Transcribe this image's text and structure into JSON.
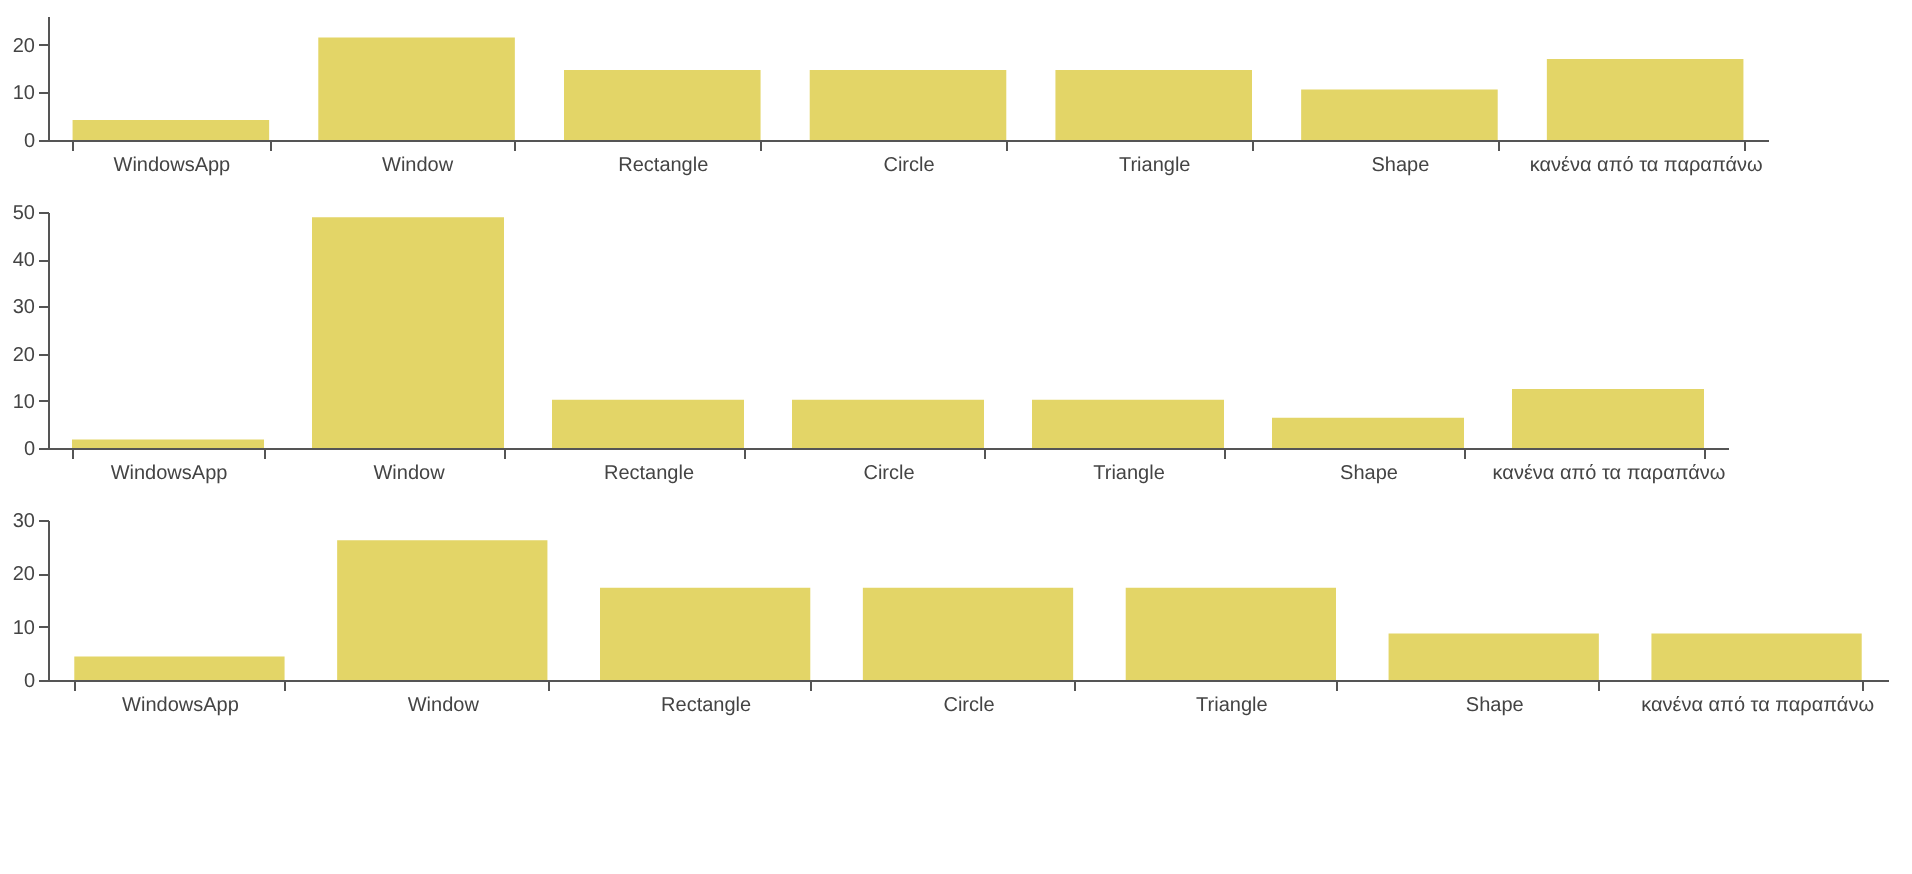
{
  "chart_data": [
    {
      "type": "bar",
      "categories": [
        "WindowsApp",
        "Window",
        "Rectangle",
        "Circle",
        "Triangle",
        "Shape",
        "κανένα από τα παραπάνω"
      ],
      "values": [
        4.2,
        21.5,
        14.7,
        14.7,
        14.7,
        10.6,
        17
      ],
      "color": "#e3d567",
      "ylim": [
        0,
        26
      ],
      "yticks": [
        0,
        10,
        20
      ],
      "grid": false
    },
    {
      "type": "bar",
      "categories": [
        "WindowsApp",
        "Window",
        "Rectangle",
        "Circle",
        "Triangle",
        "Shape",
        "κανένα από τα παραπάνω"
      ],
      "values": [
        1.8,
        48.9,
        10.2,
        10.2,
        10.2,
        6.4,
        12.5
      ],
      "color": "#e3d567",
      "ylim": [
        0,
        50
      ],
      "yticks": [
        0,
        10,
        20,
        30,
        40,
        50
      ],
      "grid": false
    },
    {
      "type": "bar",
      "categories": [
        "WindowsApp",
        "Window",
        "Rectangle",
        "Circle",
        "Triangle",
        "Shape",
        "κανένα από τα παραπάνω"
      ],
      "values": [
        4.4,
        26.2,
        17.3,
        17.3,
        17.3,
        8.7,
        8.7
      ],
      "color": "#e3d567",
      "ylim": [
        0,
        30
      ],
      "yticks": [
        0,
        10,
        20,
        30
      ],
      "grid": false
    }
  ]
}
